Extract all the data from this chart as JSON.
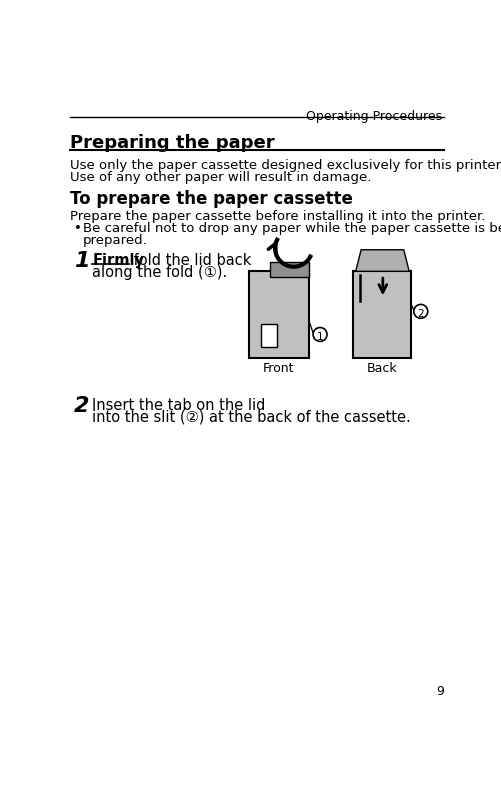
{
  "bg_color": "#ffffff",
  "header_text": "Operating Procedures",
  "title": "Preparing the paper",
  "intro_line1": "Use only the paper cassette designed exclusively for this printer.",
  "intro_line2": "Use of any other paper will result in damage.",
  "section_title": "To prepare the paper cassette",
  "section_body": "Prepare the paper cassette before installing it into the printer.",
  "bullet_text1": "Be careful not to drop any paper while the paper cassette is being",
  "bullet_text2": "prepared.",
  "step1_num": "1",
  "step1_bold": "Firmly",
  "step1_rest1": " fold the lid back",
  "step1_rest2": "along the fold (①).",
  "step2_num": "2",
  "step2_line1": "Insert the tab on the lid",
  "step2_line2": "into the slit (②) at the back of the cassette.",
  "front_label": "Front",
  "back_label": "Back",
  "footer_page": "9",
  "text_color": "#000000",
  "line_color": "#000000"
}
